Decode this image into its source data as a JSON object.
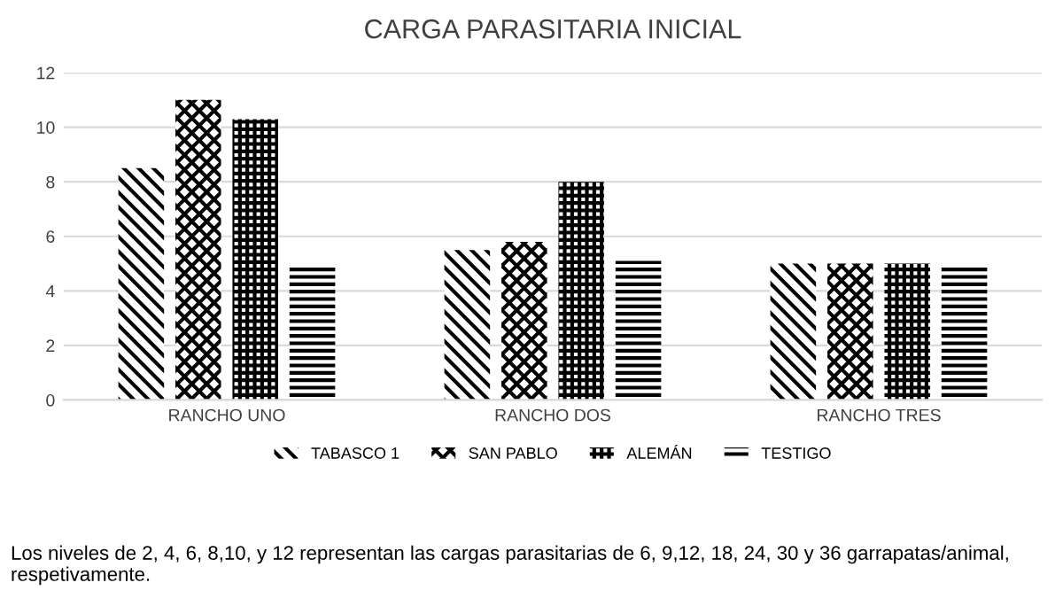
{
  "chart_data": {
    "type": "bar",
    "title": "CARGA PARASITARIA INICIAL",
    "categories": [
      "RANCHO UNO",
      "RANCHO DOS",
      "RANCHO TRES"
    ],
    "series": [
      {
        "name": "TABASCO 1",
        "color": "#000000",
        "values": [
          8.5,
          5.5,
          5.0
        ]
      },
      {
        "name": "SAN PABLO",
        "color": "#000000",
        "values": [
          11.0,
          5.8,
          5.0
        ]
      },
      {
        "name": "ALEMÁN",
        "color": "#000000",
        "values": [
          10.3,
          8.0,
          5.0
        ]
      },
      {
        "name": "TESTIGO",
        "color": "#000000",
        "values": [
          4.9,
          5.1,
          4.9
        ]
      }
    ],
    "ylim": [
      0,
      12
    ],
    "yticks": [
      0,
      2,
      4,
      6,
      8,
      10,
      12
    ],
    "grid": "y",
    "legend": "bottom",
    "annotations": [
      "Los niveles de 2, 4, 6, 8,10, y 12 representan las cargas parasitarias de 6, 9,12, 18, 24, 30 y 36 garrapatas/animal, respetivamente."
    ]
  }
}
